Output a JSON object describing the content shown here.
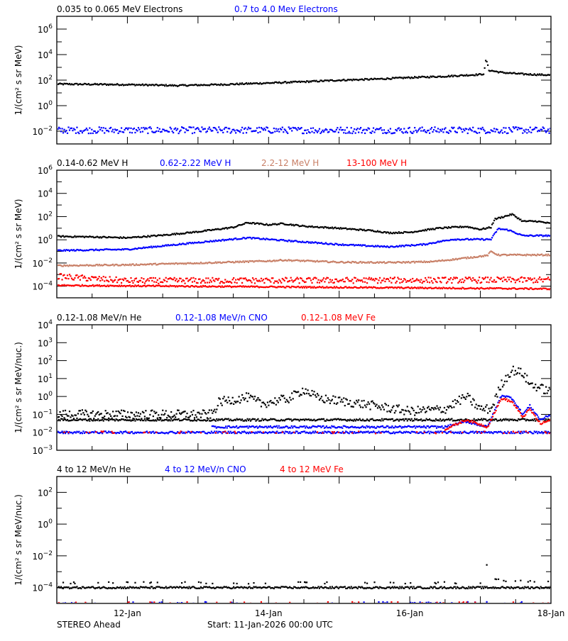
{
  "chart_data": [
    {
      "type": "scatter",
      "ylabel": "1/(cm² s sr MeV)",
      "ylim": [
        0.001,
        10000000
      ],
      "yscale": "log",
      "ytick_exponents": [
        -2,
        0,
        2,
        4,
        6
      ],
      "series": [
        {
          "name": "0.035 to 0.065 MeV Electrons",
          "color": "#000000",
          "bands": [
            {
              "points": [
                [
                  0,
                  50
                ],
                [
                  1,
                  45
                ],
                [
                  1.7,
                  38
                ],
                [
                  2.3,
                  45
                ],
                [
                  3,
                  60
                ],
                [
                  3.5,
                  75
                ],
                [
                  4,
                  100
                ],
                [
                  4.5,
                  120
                ],
                [
                  5,
                  160
                ],
                [
                  5.5,
                  200
                ],
                [
                  6,
                  280
                ],
                [
                  6.05,
                  320
                ],
                [
                  6.08,
                  5000
                ],
                [
                  6.12,
                  600
                ],
                [
                  6.3,
                  400
                ],
                [
                  6.6,
                  300
                ],
                [
                  7,
                  250
                ]
              ]
            }
          ]
        },
        {
          "name": "0.7 to 4.0 Mev Electrons",
          "color": "#0000ff",
          "bands": [
            {
              "points": [
                [
                  0,
                  0.012
                ],
                [
                  7,
                  0.012
                ]
              ],
              "spread": "wide"
            }
          ]
        }
      ]
    },
    {
      "type": "scatter",
      "ylabel": "1/(cm² s sr MeV)",
      "ylim": [
        1e-05,
        1000000
      ],
      "yscale": "log",
      "ytick_exponents": [
        -4,
        -2,
        0,
        2,
        4,
        6
      ],
      "series": [
        {
          "name": "0.14-0.62 MeV H",
          "color": "#000000",
          "bands": [
            {
              "points": [
                [
                  0,
                  2
                ],
                [
                  0.5,
                  1.8
                ],
                [
                  1,
                  1.5
                ],
                [
                  1.5,
                  2.5
                ],
                [
                  2,
                  5
                ],
                [
                  2.5,
                  12
                ],
                [
                  2.7,
                  30
                ],
                [
                  3,
                  20
                ],
                [
                  3.2,
                  25
                ],
                [
                  3.5,
                  15
                ],
                [
                  4,
                  10
                ],
                [
                  4.5,
                  6
                ],
                [
                  4.7,
                  4
                ],
                [
                  5,
                  4.5
                ],
                [
                  5.4,
                  10
                ],
                [
                  5.8,
                  14
                ],
                [
                  6,
                  8
                ],
                [
                  6.15,
                  12
                ],
                [
                  6.2,
                  60
                ],
                [
                  6.45,
                  160
                ],
                [
                  6.6,
                  40
                ],
                [
                  6.8,
                  40
                ],
                [
                  7,
                  25
                ]
              ]
            }
          ]
        },
        {
          "name": "0.62-2.22 MeV H",
          "color": "#0000ff",
          "bands": [
            {
              "points": [
                [
                  0,
                  0.12
                ],
                [
                  1,
                  0.15
                ],
                [
                  2,
                  0.6
                ],
                [
                  2.7,
                  1.5
                ],
                [
                  3.2,
                  0.9
                ],
                [
                  4,
                  0.4
                ],
                [
                  4.7,
                  0.25
                ],
                [
                  5.2,
                  0.4
                ],
                [
                  5.6,
                  1.1
                ],
                [
                  6.15,
                  1.1
                ],
                [
                  6.25,
                  9
                ],
                [
                  6.4,
                  7
                ],
                [
                  6.6,
                  2.3
                ],
                [
                  7,
                  2.3
                ]
              ]
            }
          ]
        },
        {
          "name": "2.2-12 MeV H",
          "color": "#c87f66",
          "bands": [
            {
              "points": [
                [
                  0,
                  0.006
                ],
                [
                  1,
                  0.007
                ],
                [
                  2,
                  0.01
                ],
                [
                  3,
                  0.015
                ],
                [
                  3.2,
                  0.018
                ],
                [
                  4,
                  0.012
                ],
                [
                  4.7,
                  0.011
                ],
                [
                  5.3,
                  0.013
                ],
                [
                  5.6,
                  0.02
                ],
                [
                  6.1,
                  0.045
                ],
                [
                  6.15,
                  0.1
                ],
                [
                  6.25,
                  0.05
                ],
                [
                  7,
                  0.05
                ]
              ]
            }
          ]
        },
        {
          "name": "13-100 MeV H",
          "color": "#ff0000",
          "bands": [
            {
              "points": [
                [
                  0,
                  0.0007
                ],
                [
                  1,
                  0.0003
                ],
                [
                  7,
                  0.00035
                ]
              ],
              "spread": "wide"
            },
            {
              "points": [
                [
                  0,
                  0.00012
                ],
                [
                  7,
                  6e-05
                ]
              ]
            }
          ]
        }
      ]
    },
    {
      "type": "scatter",
      "ylabel": "1/(cm² s sr MeV/nuc.)",
      "ylim": [
        0.001,
        10000
      ],
      "yscale": "log",
      "ytick_exponents": [
        -3,
        -2,
        -1,
        0,
        1,
        2,
        3,
        4
      ],
      "series": [
        {
          "name": "0.12-1.08 MeV/n He",
          "color": "#000000",
          "bands": [
            {
              "points": [
                [
                  0,
                  0.1
                ],
                [
                  2.2,
                  0.1
                ],
                [
                  2.3,
                  0.5
                ],
                [
                  2.7,
                  0.9
                ],
                [
                  2.9,
                  0.4
                ],
                [
                  3.3,
                  0.8
                ],
                [
                  3.5,
                  2.5
                ],
                [
                  3.7,
                  0.8
                ],
                [
                  4.3,
                  0.4
                ],
                [
                  5,
                  0.15
                ],
                [
                  5.5,
                  0.2
                ],
                [
                  5.8,
                  1
                ],
                [
                  6,
                  0.2
                ],
                [
                  6.15,
                  0.2
                ],
                [
                  6.3,
                  5
                ],
                [
                  6.45,
                  30
                ],
                [
                  6.6,
                  20
                ],
                [
                  6.7,
                  5
                ],
                [
                  7,
                  1.8
                ]
              ],
              "spread": "wide"
            },
            {
              "points": [
                [
                  0,
                  0.05
                ],
                [
                  7,
                  0.05
                ]
              ]
            }
          ]
        },
        {
          "name": "0.12-1.08 MeV/n CNO",
          "color": "#0000ff",
          "bands": [
            {
              "points": [
                [
                  0,
                  0.01
                ],
                [
                  7,
                  0.01
                ]
              ]
            },
            {
              "points": [
                [
                  2.2,
                  0.02
                ],
                [
                  5.5,
                  0.02
                ],
                [
                  5.8,
                  0.04
                ],
                [
                  6.1,
                  0.02
                ],
                [
                  6.3,
                  1.2
                ],
                [
                  6.45,
                  0.8
                ],
                [
                  6.6,
                  0.1
                ],
                [
                  6.7,
                  0.3
                ],
                [
                  6.85,
                  0.05
                ],
                [
                  7,
                  0.1
                ]
              ]
            }
          ]
        },
        {
          "name": "0.12-1.08 MeV Fe",
          "color": "#ff0000",
          "bands": [
            {
              "points": [
                [
                  0,
                  0.01
                ],
                [
                  7,
                  0.01
                ]
              ],
              "sparse": true
            },
            {
              "points": [
                [
                  5.5,
                  0.015
                ],
                [
                  5.8,
                  0.05
                ],
                [
                  6.1,
                  0.02
                ],
                [
                  6.3,
                  0.8
                ],
                [
                  6.45,
                  0.5
                ],
                [
                  6.6,
                  0.07
                ],
                [
                  6.7,
                  0.2
                ],
                [
                  6.85,
                  0.03
                ],
                [
                  7,
                  0.05
                ]
              ]
            }
          ]
        }
      ]
    },
    {
      "type": "scatter",
      "ylabel": "1/(cm² s sr MeV/nuc.)",
      "ylim": [
        1e-05,
        1000
      ],
      "yscale": "log",
      "ytick_exponents": [
        -4,
        -2,
        0,
        2
      ],
      "series": [
        {
          "name": "4 to 12 MeV/n He",
          "color": "#000000",
          "bands": [
            {
              "points": [
                [
                  0,
                  0.0001
                ],
                [
                  7,
                  0.0001
                ]
              ]
            },
            {
              "points": [
                [
                  0,
                  0.0002
                ],
                [
                  6.05,
                  0.0002
                ],
                [
                  6.1,
                  0.005
                ],
                [
                  6.2,
                  0.0004
                ],
                [
                  6.4,
                  0.00025
                ],
                [
                  7,
                  0.00025
                ]
              ],
              "sparse": true
            }
          ]
        },
        {
          "name": "4 to 12 MeV/n CNO",
          "color": "#0000ff",
          "bands": [
            {
              "points": [
                [
                  0,
                  1.1e-05
                ],
                [
                  7,
                  1.1e-05
                ]
              ],
              "sparse": true
            }
          ]
        },
        {
          "name": "4 to 12 MeV Fe",
          "color": "#ff0000",
          "bands": [
            {
              "points": [
                [
                  0,
                  1.1e-05
                ],
                [
                  7,
                  1.1e-05
                ]
              ],
              "sparse": true
            }
          ]
        }
      ]
    }
  ],
  "xaxis": {
    "start": "11-Jan-2026 00:00",
    "end": "18-Jan-2026 00:00",
    "xlim_days": [
      0,
      7
    ],
    "ticks": [
      {
        "day": 1,
        "label": "12-Jan"
      },
      {
        "day": 3,
        "label": "14-Jan"
      },
      {
        "day": 5,
        "label": "16-Jan"
      },
      {
        "day": 7,
        "label": "18-Jan"
      }
    ]
  },
  "footer": {
    "spacecraft": "STEREO Ahead",
    "start": "Start: 11-Jan-2026 00:00 UTC"
  }
}
